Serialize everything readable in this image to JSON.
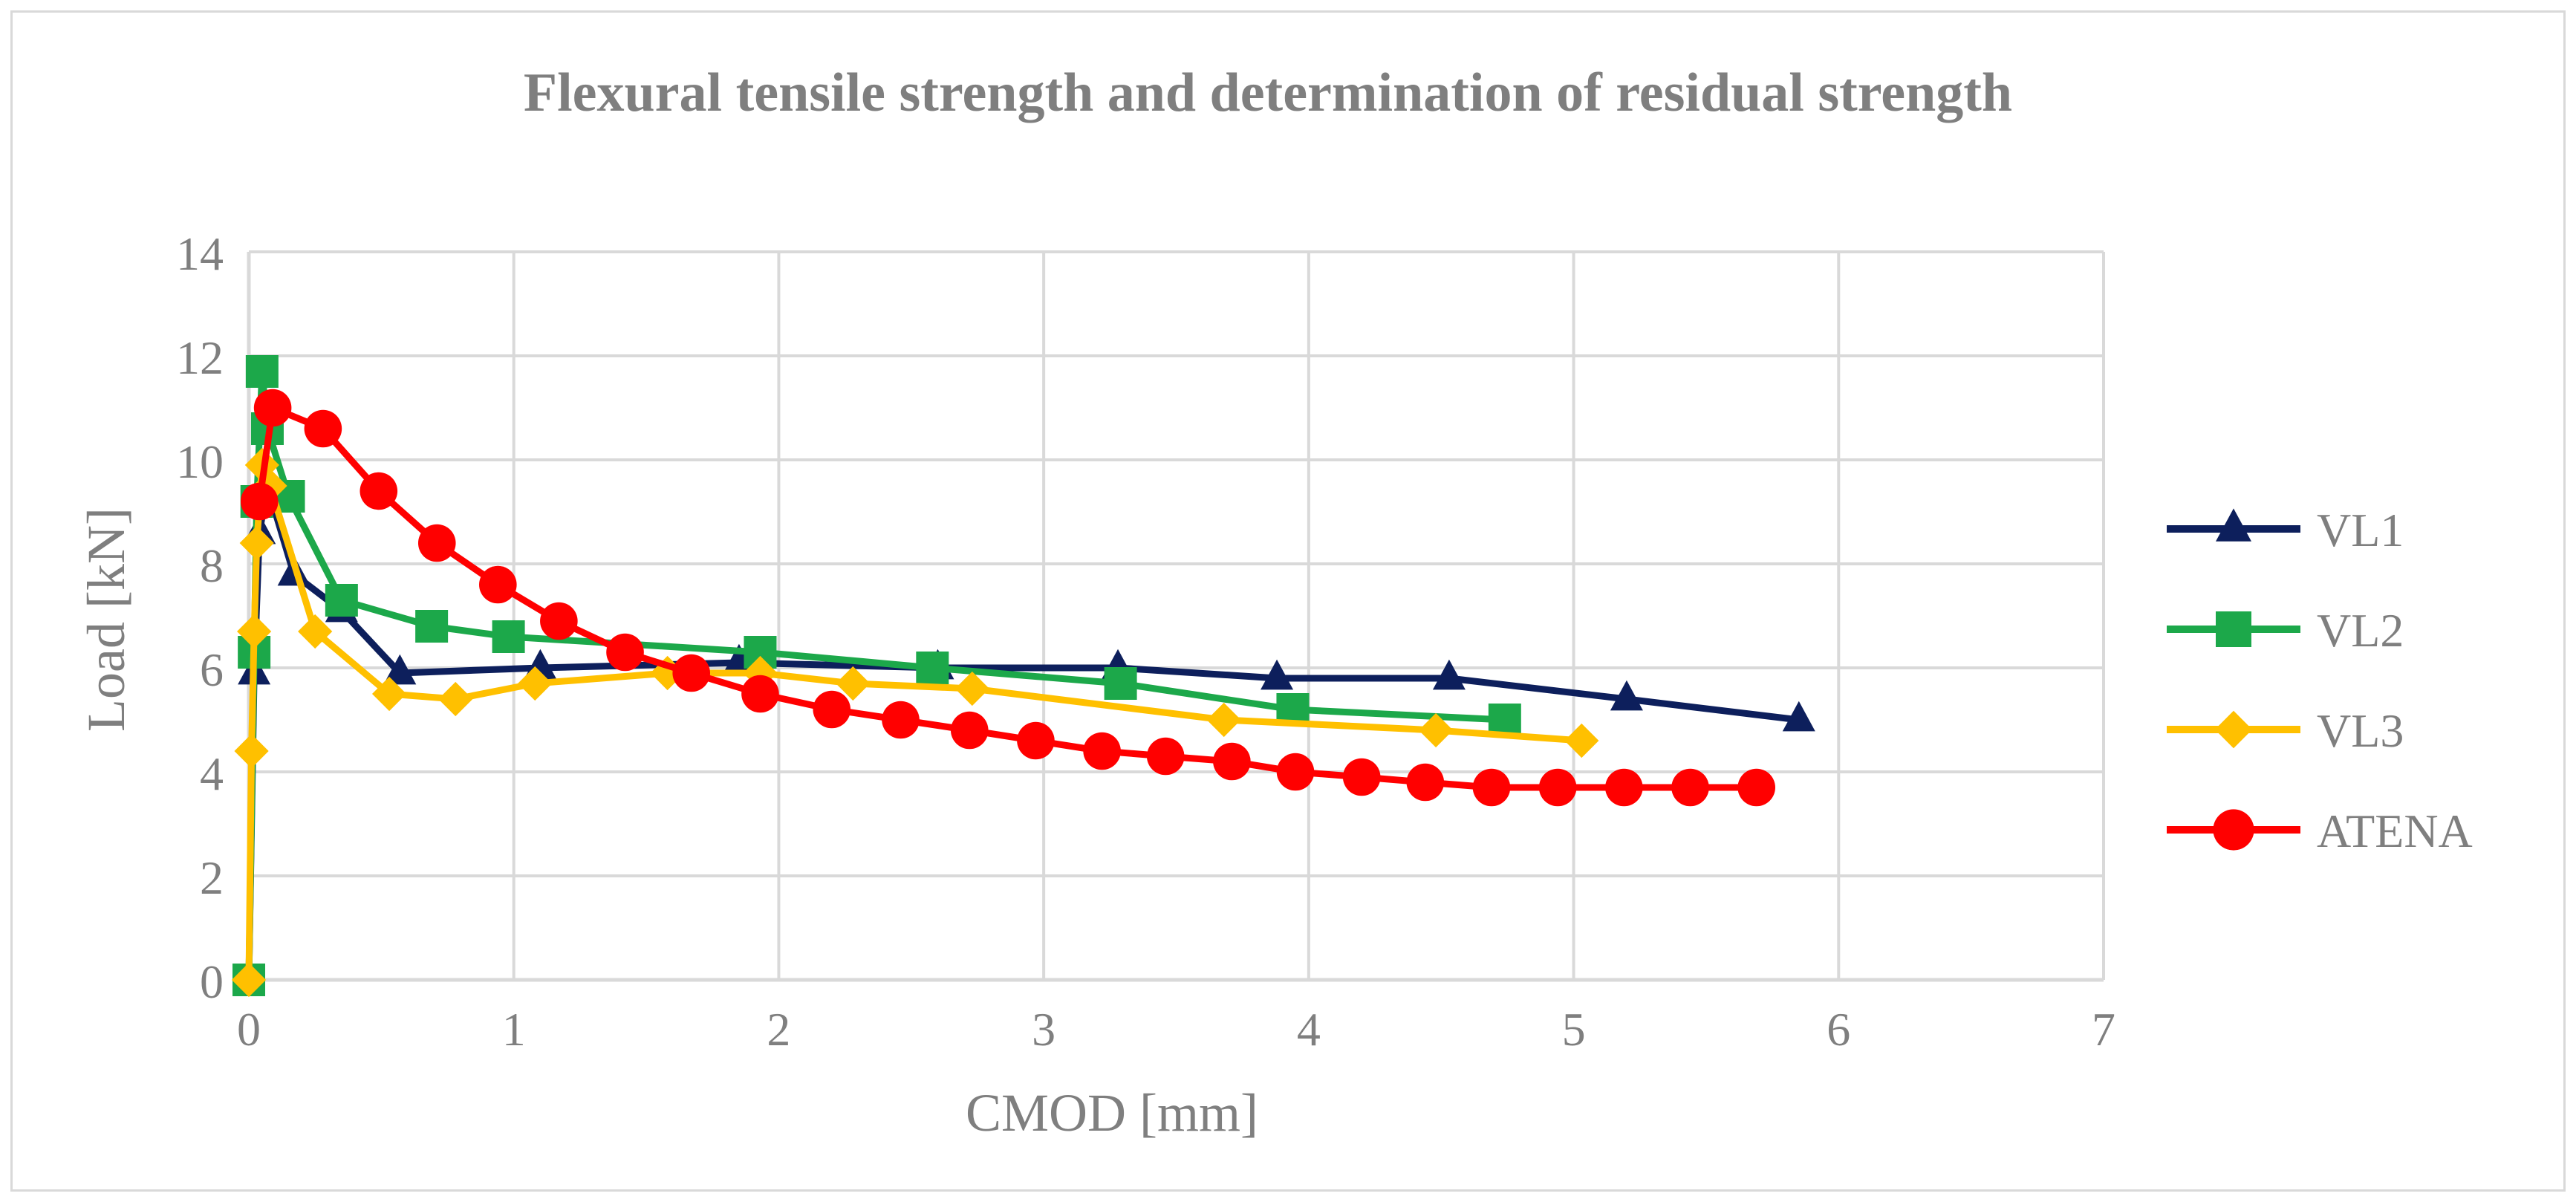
{
  "chart_data": {
    "type": "line",
    "title": "Flexural tensile strength and determination of residual strength",
    "xlabel": "CMOD [mm]",
    "ylabel": "Load [kN]",
    "xlim": [
      0,
      7
    ],
    "ylim": [
      0,
      14
    ],
    "x_ticks": [
      "0",
      "1",
      "2",
      "3",
      "4",
      "5",
      "6",
      "7"
    ],
    "y_ticks": [
      "0",
      "2",
      "4",
      "6",
      "8",
      "10",
      "12",
      "14"
    ],
    "grid": true,
    "legend_position": "right",
    "series": [
      {
        "name": "VL1",
        "color": "#0d1f5c",
        "marker": "triangle",
        "x": [
          0.0,
          0.02,
          0.04,
          0.07,
          0.17,
          0.35,
          0.57,
          1.1,
          1.85,
          2.6,
          3.28,
          3.88,
          4.53,
          5.2,
          5.85
        ],
        "y": [
          0.0,
          5.9,
          8.6,
          9.5,
          7.8,
          7.1,
          5.9,
          6.0,
          6.1,
          6.0,
          6.0,
          5.8,
          5.8,
          5.4,
          5.0
        ]
      },
      {
        "name": "VL2",
        "color": "#1ca84a",
        "marker": "square",
        "x": [
          0.0,
          0.02,
          0.03,
          0.05,
          0.07,
          0.15,
          0.35,
          0.69,
          0.98,
          1.93,
          2.58,
          3.29,
          3.94,
          4.74
        ],
        "y": [
          0.0,
          6.3,
          9.2,
          11.7,
          10.6,
          9.3,
          7.3,
          6.8,
          6.6,
          6.3,
          6.0,
          5.7,
          5.2,
          5.0
        ]
      },
      {
        "name": "VL3",
        "color": "#ffc000",
        "marker": "diamond",
        "x": [
          0.0,
          0.01,
          0.02,
          0.03,
          0.05,
          0.08,
          0.25,
          0.53,
          0.78,
          1.08,
          1.58,
          1.93,
          2.28,
          2.73,
          3.68,
          4.48,
          5.03
        ],
        "y": [
          0.0,
          4.4,
          6.7,
          8.4,
          9.9,
          9.5,
          6.7,
          5.5,
          5.4,
          5.7,
          5.9,
          5.9,
          5.7,
          5.6,
          5.0,
          4.8,
          4.6
        ]
      },
      {
        "name": "ATENA",
        "color": "#ff0000",
        "marker": "circle",
        "x": [
          0.04,
          0.09,
          0.28,
          0.49,
          0.71,
          0.94,
          1.17,
          1.42,
          1.67,
          1.93,
          2.2,
          2.46,
          2.72,
          2.97,
          3.22,
          3.46,
          3.71,
          3.95,
          4.2,
          4.44,
          4.69,
          4.94,
          5.19,
          5.44,
          5.69
        ],
        "y": [
          9.2,
          11.0,
          10.6,
          9.4,
          8.4,
          7.6,
          6.9,
          6.3,
          5.9,
          5.5,
          5.2,
          5.0,
          4.8,
          4.6,
          4.4,
          4.3,
          4.2,
          4.0,
          3.9,
          3.8,
          3.7,
          3.7,
          3.7,
          3.7,
          3.7
        ]
      }
    ]
  }
}
